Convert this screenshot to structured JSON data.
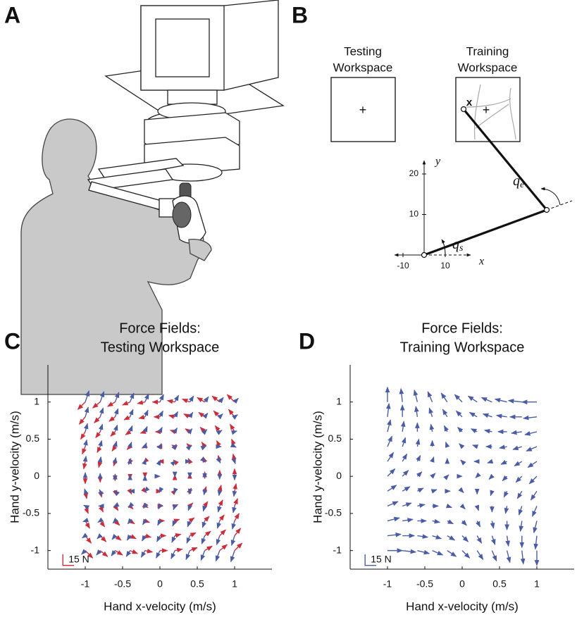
{
  "panels": {
    "a": {
      "label": "A"
    },
    "b": {
      "label": "B",
      "testing": [
        "Testing",
        "Workspace"
      ],
      "training": [
        "Training",
        "Workspace"
      ],
      "target": "+",
      "hand": "x",
      "axes": {
        "xlabel": "x",
        "ylabel": "y",
        "xticks": [
          -10,
          10
        ],
        "yticks": [
          10,
          20
        ]
      },
      "elbow_angle": {
        "symbol": "q",
        "sub": "e"
      },
      "shoulder_angle": {
        "symbol": "q",
        "sub": "s"
      }
    },
    "c": {
      "label": "C"
    },
    "d": {
      "label": "D"
    }
  },
  "chart_data": [
    {
      "type": "quiver",
      "title": [
        "Force Fields:",
        "Testing Workspace"
      ],
      "xlabel": "Hand x-velocity (m/s)",
      "ylabel": "Hand y-velocity (m/s)",
      "xlim": [
        -1.5,
        1.5
      ],
      "ylim": [
        -1.25,
        1.5
      ],
      "xticks": [
        -1,
        -0.5,
        0,
        0.5,
        1
      ],
      "yticks": [
        -1,
        -0.5,
        0,
        0.5,
        1
      ],
      "scale_bar": {
        "value": 15,
        "label": "15 N",
        "color": "#cc2d3a"
      },
      "x": [
        -1,
        -0.8,
        -0.6,
        -0.4,
        -0.2,
        0,
        0.2,
        0.4,
        0.6,
        0.8,
        1
      ],
      "y": [
        -1,
        -0.8,
        -0.6,
        -0.4,
        -0.2,
        0,
        0.2,
        0.4,
        0.6,
        0.8,
        1
      ],
      "series": [
        {
          "color": "#cc2d3a",
          "u": [
            [
              10,
              10,
              10,
              10,
              10,
              10,
              10,
              10,
              10,
              10,
              10
            ],
            [
              8,
              8,
              8,
              8,
              8,
              8,
              8,
              8,
              8,
              8,
              8
            ],
            [
              6,
              6,
              6,
              6,
              6,
              6,
              6,
              6,
              6,
              6,
              6
            ],
            [
              4,
              4,
              4,
              4,
              4,
              4,
              4,
              4,
              4,
              4,
              4
            ],
            [
              2,
              2,
              2,
              2,
              2,
              2,
              2,
              2,
              2,
              2,
              2
            ],
            [
              0,
              0,
              0,
              0,
              0,
              0,
              0,
              0,
              0,
              0,
              0
            ],
            [
              -2,
              -2,
              -2,
              -2,
              -2,
              -2,
              -2,
              -2,
              -2,
              -2,
              -2
            ],
            [
              -4,
              -4,
              -4,
              -4,
              -4,
              -4,
              -4,
              -4,
              -4,
              -4,
              -4
            ],
            [
              -6,
              -6,
              -6,
              -6,
              -6,
              -6,
              -6,
              -6,
              -6,
              -6,
              -6
            ],
            [
              -8,
              -8,
              -8,
              -8,
              -8,
              -8,
              -8,
              -8,
              -8,
              -8,
              -8
            ],
            [
              -10,
              -10,
              -10,
              -10,
              -10,
              -10,
              -10,
              -10,
              -10,
              -10,
              -10
            ]
          ],
          "v": [
            [
              -10,
              -8,
              -6,
              -4,
              -2,
              0,
              2,
              4,
              6,
              8,
              10
            ],
            [
              -10,
              -8,
              -6,
              -4,
              -2,
              0,
              2,
              4,
              6,
              8,
              10
            ],
            [
              -10,
              -8,
              -6,
              -4,
              -2,
              0,
              2,
              4,
              6,
              8,
              10
            ],
            [
              -10,
              -8,
              -6,
              -4,
              -2,
              0,
              2,
              4,
              6,
              8,
              10
            ],
            [
              -10,
              -8,
              -6,
              -4,
              -2,
              0,
              2,
              4,
              6,
              8,
              10
            ],
            [
              -10,
              -8,
              -6,
              -4,
              -2,
              0,
              2,
              4,
              6,
              8,
              10
            ],
            [
              -10,
              -8,
              -6,
              -4,
              -2,
              0,
              2,
              4,
              6,
              8,
              10
            ],
            [
              -10,
              -8,
              -6,
              -4,
              -2,
              0,
              2,
              4,
              6,
              8,
              10
            ],
            [
              -10,
              -8,
              -6,
              -4,
              -2,
              0,
              2,
              4,
              6,
              8,
              10
            ],
            [
              -10,
              -8,
              -6,
              -4,
              -2,
              0,
              2,
              4,
              6,
              8,
              10
            ],
            [
              -10,
              -8,
              -6,
              -4,
              -2,
              0,
              2,
              4,
              6,
              8,
              10
            ]
          ]
        },
        {
          "color": "#4a5ca6",
          "u": [
            [
              -5,
              -5,
              -5,
              -5,
              -5,
              -5,
              -5,
              -5,
              -5,
              -5,
              -5
            ],
            [
              -4,
              -4,
              -4,
              -4,
              -4,
              -4,
              -4,
              -4,
              -4,
              -4,
              -4
            ],
            [
              -3,
              -3,
              -3,
              -3,
              -3,
              -3,
              -3,
              -3,
              -3,
              -3,
              -3
            ],
            [
              -2,
              -2,
              -2,
              -2,
              -2,
              -2,
              -2,
              -2,
              -2,
              -2,
              -2
            ],
            [
              -1,
              -1,
              -1,
              -1,
              -1,
              -1,
              -1,
              -1,
              -1,
              -1,
              -1
            ],
            [
              0,
              0,
              0,
              0,
              0,
              0,
              0,
              0,
              0,
              0,
              0
            ],
            [
              1,
              1,
              1,
              1,
              1,
              1,
              1,
              1,
              1,
              1,
              1
            ],
            [
              2,
              2,
              2,
              2,
              2,
              2,
              2,
              2,
              2,
              2,
              2
            ],
            [
              3,
              3,
              3,
              3,
              3,
              3,
              3,
              3,
              3,
              3,
              3
            ],
            [
              4,
              4,
              4,
              4,
              4,
              4,
              4,
              4,
              4,
              4,
              4
            ],
            [
              5,
              5,
              5,
              5,
              5,
              5,
              5,
              5,
              5,
              5,
              5
            ]
          ],
          "v": [
            [
              -5,
              -6,
              -7,
              -8,
              -9,
              -10,
              -11,
              -12,
              -13,
              -14,
              -15
            ],
            [
              -3,
              -4,
              -5,
              -6,
              -7,
              -8,
              -9,
              -10,
              -11,
              -12,
              -13
            ],
            [
              -1,
              -2,
              -3,
              -4,
              -5,
              -6,
              -7,
              -8,
              -9,
              -10,
              -11
            ],
            [
              1,
              0,
              -1,
              -2,
              -3,
              -4,
              -5,
              -6,
              -7,
              -8,
              -9
            ],
            [
              3,
              2,
              1,
              0,
              -1,
              -2,
              -3,
              -4,
              -5,
              -6,
              -7
            ],
            [
              5,
              4,
              3,
              2,
              1,
              0,
              -1,
              -2,
              -3,
              -4,
              -5
            ],
            [
              7,
              6,
              5,
              4,
              3,
              2,
              1,
              0,
              -1,
              -2,
              -3
            ],
            [
              9,
              8,
              7,
              6,
              5,
              4,
              3,
              2,
              1,
              0,
              -1
            ],
            [
              11,
              10,
              9,
              8,
              7,
              6,
              5,
              4,
              3,
              2,
              1
            ],
            [
              13,
              12,
              11,
              10,
              9,
              8,
              7,
              6,
              5,
              4,
              3
            ],
            [
              15,
              14,
              13,
              12,
              11,
              10,
              9,
              8,
              7,
              6,
              5
            ]
          ]
        }
      ]
    },
    {
      "type": "quiver",
      "title": [
        "Force Fields:",
        "Training Workspace"
      ],
      "xlabel": "Hand x-velocity (m/s)",
      "ylabel": "Hand y-velocity (m/s)",
      "xlim": [
        -1.5,
        1.5
      ],
      "ylim": [
        -1.25,
        1.5
      ],
      "xticks": [
        -1,
        -0.5,
        0,
        0.5,
        1
      ],
      "yticks": [
        -1,
        -0.5,
        0,
        0.5,
        1
      ],
      "scale_bar": {
        "value": 15,
        "label": "15 N",
        "color": "#4a5ca6"
      },
      "x": [
        -1,
        -0.8,
        -0.6,
        -0.4,
        -0.2,
        0,
        0.2,
        0.4,
        0.6,
        0.8,
        1
      ],
      "y": [
        -1,
        -0.8,
        -0.6,
        -0.4,
        -0.2,
        0,
        0.2,
        0.4,
        0.6,
        0.8,
        1
      ],
      "series": [
        {
          "color": "#4a5ca6",
          "u": [
            [
              20,
              18,
              16,
              14,
              12,
              10,
              8,
              6,
              4,
              2,
              0
            ],
            [
              18,
              16,
              14,
              12,
              10,
              8,
              6,
              4,
              2,
              0,
              -2
            ],
            [
              16,
              14,
              12,
              10,
              8,
              6,
              4,
              2,
              0,
              -2,
              -4
            ],
            [
              14,
              12,
              10,
              8,
              6,
              4,
              2,
              0,
              -2,
              -4,
              -6
            ],
            [
              12,
              10,
              8,
              6,
              4,
              2,
              0,
              -2,
              -4,
              -6,
              -8
            ],
            [
              10,
              8,
              6,
              4,
              2,
              0,
              -2,
              -4,
              -6,
              -8,
              -10
            ],
            [
              8,
              6,
              4,
              2,
              0,
              -2,
              -4,
              -6,
              -8,
              -10,
              -12
            ],
            [
              6,
              4,
              2,
              0,
              -2,
              -4,
              -6,
              -8,
              -10,
              -12,
              -14
            ],
            [
              4,
              2,
              0,
              -2,
              -4,
              -6,
              -8,
              -10,
              -12,
              -14,
              -16
            ],
            [
              2,
              0,
              -2,
              -4,
              -6,
              -8,
              -10,
              -12,
              -14,
              -16,
              -18
            ],
            [
              0,
              -2,
              -4,
              -6,
              -8,
              -10,
              -12,
              -14,
              -16,
              -18,
              -20
            ]
          ],
          "v": [
            [
              0,
              -2,
              -4,
              -6,
              -8,
              -10,
              -12,
              -14,
              -16,
              -18,
              -20
            ],
            [
              2,
              0,
              -2,
              -4,
              -6,
              -8,
              -10,
              -12,
              -14,
              -16,
              -18
            ],
            [
              4,
              2,
              0,
              -2,
              -4,
              -6,
              -8,
              -10,
              -12,
              -14,
              -16
            ],
            [
              6,
              4,
              2,
              0,
              -2,
              -4,
              -6,
              -8,
              -10,
              -12,
              -14
            ],
            [
              8,
              6,
              4,
              2,
              0,
              -2,
              -4,
              -6,
              -8,
              -10,
              -12
            ],
            [
              10,
              8,
              6,
              4,
              2,
              0,
              -2,
              -4,
              -6,
              -8,
              -10
            ],
            [
              12,
              10,
              8,
              6,
              4,
              2,
              0,
              -2,
              -4,
              -6,
              -8
            ],
            [
              14,
              12,
              10,
              8,
              6,
              4,
              2,
              0,
              -2,
              -4,
              -6
            ],
            [
              16,
              14,
              12,
              10,
              8,
              6,
              4,
              2,
              0,
              -2,
              -4
            ],
            [
              18,
              16,
              14,
              12,
              10,
              8,
              6,
              4,
              2,
              0,
              -2
            ],
            [
              20,
              18,
              16,
              14,
              12,
              10,
              8,
              6,
              4,
              2,
              0
            ]
          ]
        }
      ]
    }
  ]
}
